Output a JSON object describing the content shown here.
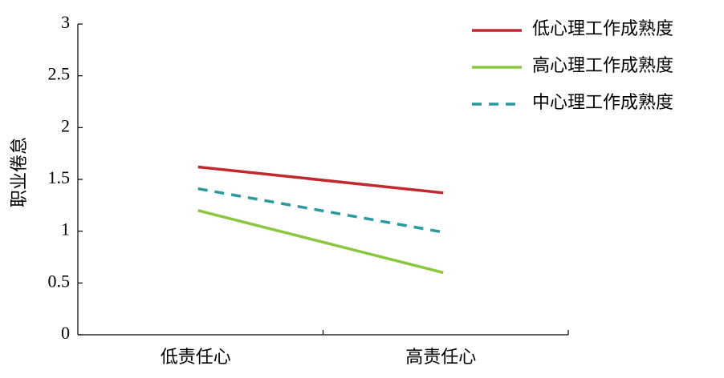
{
  "chart_data": {
    "type": "line",
    "y_label": "职业倦怠",
    "categories": [
      "低责任心",
      "高责任心"
    ],
    "series": [
      {
        "name": "低心理工作成熟度",
        "color": "#c1272d",
        "style": "solid",
        "values": [
          1.62,
          1.37
        ]
      },
      {
        "name": "高心理工作成熟度",
        "color": "#8cc63f",
        "style": "solid",
        "values": [
          1.2,
          0.6
        ]
      },
      {
        "name": "中心理工作成熟度",
        "color": "#2a9a9e",
        "style": "dashed",
        "values": [
          1.41,
          0.99
        ]
      }
    ],
    "ylim": [
      0,
      3
    ],
    "yticks": [
      0,
      0.5,
      1,
      1.5,
      2,
      2.5,
      3
    ],
    "legend": "upper right"
  }
}
